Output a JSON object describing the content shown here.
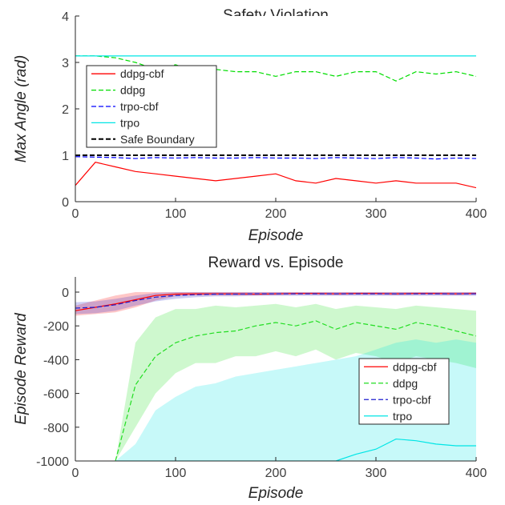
{
  "chart_data": [
    {
      "type": "line",
      "title": "Safety Violation",
      "xlabel": "Episode",
      "ylabel": "Max Angle (rad)",
      "xlim": [
        0,
        400
      ],
      "ylim": [
        0,
        4
      ],
      "xticks": [
        "0",
        "100",
        "200",
        "300",
        "400"
      ],
      "yticks": [
        "0",
        "1",
        "2",
        "3",
        "4"
      ],
      "grid": false,
      "legend_position": "left",
      "x": [
        0,
        20,
        40,
        60,
        80,
        100,
        120,
        140,
        160,
        180,
        200,
        220,
        240,
        260,
        280,
        300,
        320,
        340,
        360,
        380,
        400
      ],
      "series": [
        {
          "name": "ddpg-cbf",
          "color": "#ff0000",
          "style": "solid",
          "values": [
            0.35,
            0.85,
            0.75,
            0.65,
            0.6,
            0.55,
            0.5,
            0.45,
            0.5,
            0.55,
            0.6,
            0.45,
            0.4,
            0.5,
            0.45,
            0.4,
            0.45,
            0.4,
            0.4,
            0.4,
            0.3
          ]
        },
        {
          "name": "ddpg",
          "color": "#00dd00",
          "style": "dashed",
          "values": [
            3.14,
            3.14,
            3.1,
            3.0,
            2.85,
            2.95,
            2.8,
            2.85,
            2.8,
            2.8,
            2.7,
            2.8,
            2.8,
            2.7,
            2.8,
            2.8,
            2.6,
            2.8,
            2.75,
            2.8,
            2.7
          ]
        },
        {
          "name": "trpo-cbf",
          "color": "#0000ff",
          "style": "dashed",
          "values": [
            0.97,
            0.96,
            0.95,
            0.93,
            0.95,
            0.94,
            0.95,
            0.94,
            0.94,
            0.95,
            0.94,
            0.94,
            0.93,
            0.95,
            0.94,
            0.93,
            0.95,
            0.94,
            0.92,
            0.94,
            0.93
          ]
        },
        {
          "name": "trpo",
          "color": "#00e5e5",
          "style": "solid",
          "values": [
            3.14,
            3.14,
            3.14,
            3.14,
            3.14,
            3.14,
            3.14,
            3.14,
            3.14,
            3.14,
            3.14,
            3.14,
            3.14,
            3.14,
            3.14,
            3.14,
            3.14,
            3.14,
            3.14,
            3.14,
            3.14
          ]
        },
        {
          "name": "Safe Boundary",
          "color": "#000000",
          "style": "dashed",
          "values": [
            1,
            1,
            1,
            1,
            1,
            1,
            1,
            1,
            1,
            1,
            1,
            1,
            1,
            1,
            1,
            1,
            1,
            1,
            1,
            1,
            1
          ]
        }
      ]
    },
    {
      "type": "line",
      "title": "Reward vs. Episode",
      "xlabel": "Episode",
      "ylabel": "Episode Reward",
      "xlim": [
        0,
        400
      ],
      "ylim": [
        -1000,
        90
      ],
      "xticks": [
        "0",
        "100",
        "200",
        "300",
        "400"
      ],
      "yticks": [
        "0",
        "-200",
        "-400",
        "-600",
        "-800",
        "-1000"
      ],
      "grid": false,
      "legend_position": "right",
      "x": [
        0,
        20,
        40,
        60,
        80,
        100,
        120,
        140,
        160,
        180,
        200,
        220,
        240,
        260,
        280,
        300,
        320,
        340,
        360,
        380,
        400
      ],
      "series": [
        {
          "name": "ddpg-cbf",
          "color": "#ff0000",
          "style": "solid",
          "values": [
            -110,
            -90,
            -70,
            -45,
            -20,
            -12,
            -10,
            -10,
            -10,
            -12,
            -10,
            -8,
            -8,
            -10,
            -8,
            -8,
            -10,
            -8,
            -8,
            -10,
            -8
          ],
          "lower": [
            -140,
            -130,
            -120,
            -90,
            -50,
            -25,
            -20,
            -20,
            -20,
            -20,
            -18,
            -16,
            -16,
            -18,
            -16,
            -16,
            -18,
            -16,
            -16,
            -18,
            -16
          ],
          "upper": [
            -80,
            -50,
            -20,
            0,
            0,
            0,
            0,
            0,
            0,
            0,
            0,
            0,
            0,
            0,
            0,
            0,
            0,
            0,
            0,
            0,
            0
          ]
        },
        {
          "name": "ddpg",
          "color": "#22dd22",
          "style": "dashed",
          "values": [
            null,
            null,
            -1000,
            -550,
            -380,
            -300,
            -260,
            -240,
            -230,
            -200,
            -180,
            -200,
            -170,
            -220,
            -180,
            -200,
            -220,
            -180,
            -200,
            -230,
            -260
          ],
          "lower": [
            null,
            null,
            -1000,
            -800,
            -600,
            -480,
            -420,
            -420,
            -380,
            -380,
            -350,
            -380,
            -340,
            -400,
            -360,
            -380,
            -420,
            -380,
            -400,
            -420,
            -450
          ],
          "upper": [
            null,
            null,
            -1000,
            -300,
            -150,
            -100,
            -100,
            -80,
            -90,
            -80,
            -70,
            -90,
            -70,
            -100,
            -80,
            -90,
            -100,
            -80,
            -90,
            -100,
            -110
          ]
        },
        {
          "name": "trpo-cbf",
          "color": "#1f1fcf",
          "style": "dashed",
          "values": [
            -95,
            -90,
            -75,
            -50,
            -30,
            -20,
            -15,
            -12,
            -12,
            -10,
            -10,
            -10,
            -10,
            -10,
            -10,
            -10,
            -10,
            -10,
            -10,
            -10,
            -10
          ],
          "lower": [
            -130,
            -125,
            -110,
            -80,
            -55,
            -40,
            -30,
            -25,
            -25,
            -22,
            -22,
            -22,
            -22,
            -22,
            -22,
            -22,
            -22,
            -22,
            -22,
            -22,
            -22
          ],
          "upper": [
            -60,
            -55,
            -40,
            -20,
            -5,
            0,
            0,
            0,
            0,
            0,
            0,
            0,
            0,
            0,
            0,
            0,
            0,
            0,
            0,
            0,
            0
          ]
        },
        {
          "name": "trpo",
          "color": "#00e5e5",
          "style": "solid",
          "values": [
            null,
            null,
            -1000,
            -1000,
            -1000,
            -1000,
            -1000,
            -1000,
            -1000,
            -1000,
            -1000,
            -1000,
            -1000,
            -1000,
            -960,
            -930,
            -870,
            -880,
            -900,
            -910,
            -910
          ],
          "lower": [
            null,
            null,
            -1000,
            -1000,
            -1000,
            -1000,
            -1000,
            -1000,
            -1000,
            -1000,
            -1000,
            -1000,
            -1000,
            -1000,
            -1000,
            -1000,
            -1000,
            -1000,
            -1000,
            -1000,
            -1000
          ],
          "upper": [
            null,
            null,
            -1000,
            -900,
            -700,
            -620,
            -560,
            -540,
            -500,
            -480,
            -460,
            -440,
            -420,
            -400,
            -380,
            -340,
            -300,
            -280,
            -300,
            -280,
            -300
          ]
        }
      ]
    }
  ]
}
